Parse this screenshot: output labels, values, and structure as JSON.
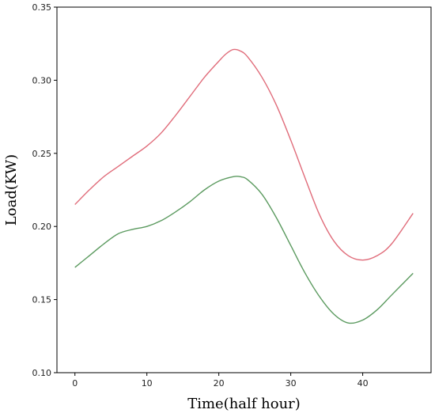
{
  "chart_data": {
    "type": "line",
    "title": "",
    "xlabel": "Time(half hour)",
    "ylabel": "Load(KW)",
    "xlim": [
      -2.5,
      49.5
    ],
    "ylim": [
      0.1,
      0.35
    ],
    "grid": false,
    "legend": "none",
    "x_ticks": [
      0,
      10,
      20,
      30,
      40
    ],
    "y_ticks": [
      0.1,
      0.15,
      0.2,
      0.25,
      0.3,
      0.35
    ],
    "x_tick_labels": [
      "0",
      "10",
      "20",
      "30",
      "40"
    ],
    "y_tick_labels": [
      "0.10",
      "0.15",
      "0.20",
      "0.25",
      "0.30",
      "0.35"
    ],
    "series": [
      {
        "color": "#e06c7a",
        "x": [
          0,
          2,
          4,
          6,
          8,
          10,
          12,
          14,
          16,
          18,
          20,
          21,
          22,
          23,
          24,
          26,
          28,
          30,
          32,
          34,
          36,
          38,
          40,
          42,
          44,
          47
        ],
        "y": [
          0.215,
          0.225,
          0.234,
          0.241,
          0.248,
          0.255,
          0.264,
          0.276,
          0.289,
          0.302,
          0.313,
          0.318,
          0.321,
          0.32,
          0.316,
          0.302,
          0.283,
          0.259,
          0.233,
          0.208,
          0.19,
          0.18,
          0.177,
          0.18,
          0.188,
          0.209
        ]
      },
      {
        "color": "#5b9a5f",
        "x": [
          0,
          2,
          4,
          6,
          8,
          10,
          12,
          14,
          16,
          18,
          20,
          22,
          23,
          24,
          26,
          28,
          30,
          32,
          34,
          36,
          38,
          40,
          42,
          44,
          47
        ],
        "y": [
          0.172,
          0.18,
          0.188,
          0.195,
          0.198,
          0.2,
          0.204,
          0.21,
          0.217,
          0.225,
          0.231,
          0.234,
          0.234,
          0.232,
          0.222,
          0.206,
          0.187,
          0.168,
          0.152,
          0.14,
          0.134,
          0.136,
          0.143,
          0.153,
          0.168
        ]
      }
    ]
  }
}
